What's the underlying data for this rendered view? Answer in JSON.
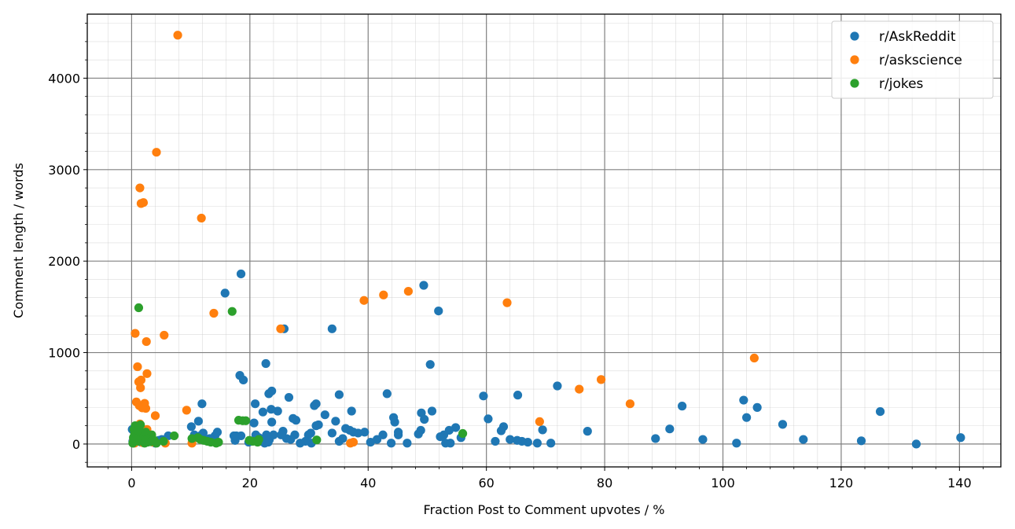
{
  "chart_data": {
    "type": "scatter",
    "title": "",
    "xlabel": "Fraction Post to Comment upvotes / %",
    "ylabel": "Comment length / words",
    "xlim": [
      -7.5,
      147
    ],
    "ylim": [
      -250,
      4700
    ],
    "xticks": [
      0,
      20,
      40,
      60,
      80,
      100,
      120,
      140
    ],
    "yticks": [
      0,
      1000,
      2000,
      3000,
      4000
    ],
    "grid": true,
    "legend_position": "top-right",
    "series": [
      {
        "name": "r/AskReddit",
        "color": "#1f77b4",
        "points": [
          [
            18.5,
            1860
          ],
          [
            15.8,
            1650
          ],
          [
            49.4,
            1735
          ],
          [
            51.9,
            1455
          ],
          [
            22.7,
            880
          ],
          [
            50.5,
            870
          ],
          [
            25.8,
            1260
          ],
          [
            33.9,
            1260
          ],
          [
            18.3,
            750
          ],
          [
            18.9,
            700
          ],
          [
            11.9,
            440
          ],
          [
            20.9,
            440
          ],
          [
            23.2,
            550
          ],
          [
            23.7,
            580
          ],
          [
            26.6,
            510
          ],
          [
            30.9,
            420
          ],
          [
            31.2,
            440
          ],
          [
            35.1,
            540
          ],
          [
            37.2,
            360
          ],
          [
            43.2,
            550
          ],
          [
            49.0,
            340
          ],
          [
            50.8,
            360
          ],
          [
            59.5,
            525
          ],
          [
            65.3,
            535
          ],
          [
            72.0,
            635
          ],
          [
            93.1,
            415
          ],
          [
            103.5,
            480
          ],
          [
            104.0,
            290
          ],
          [
            105.8,
            400
          ],
          [
            110.1,
            215
          ],
          [
            126.6,
            355
          ],
          [
            140.2,
            70
          ],
          [
            132.7,
            0
          ],
          [
            123.4,
            35
          ],
          [
            113.6,
            50
          ],
          [
            102.3,
            10
          ],
          [
            96.6,
            50
          ],
          [
            91.0,
            165
          ],
          [
            88.6,
            60
          ],
          [
            77.1,
            140
          ],
          [
            70.9,
            10
          ],
          [
            69.5,
            155
          ],
          [
            68.6,
            10
          ],
          [
            67.0,
            20
          ],
          [
            66.0,
            30
          ],
          [
            65.2,
            40
          ],
          [
            64.0,
            50
          ],
          [
            62.9,
            190
          ],
          [
            62.5,
            145
          ],
          [
            61.5,
            30
          ],
          [
            60.3,
            275
          ],
          [
            55.7,
            70
          ],
          [
            54.8,
            180
          ],
          [
            53.9,
            10
          ],
          [
            53.7,
            150
          ],
          [
            53.1,
            10
          ],
          [
            52.8,
            100
          ],
          [
            52.2,
            80
          ],
          [
            49.5,
            270
          ],
          [
            48.9,
            150
          ],
          [
            48.5,
            110
          ],
          [
            46.6,
            10
          ],
          [
            45.1,
            100
          ],
          [
            45.1,
            130
          ],
          [
            44.5,
            240
          ],
          [
            44.3,
            290
          ],
          [
            43.9,
            10
          ],
          [
            42.5,
            100
          ],
          [
            41.5,
            50
          ],
          [
            40.4,
            20
          ],
          [
            39.4,
            130
          ],
          [
            38.3,
            120
          ],
          [
            37.5,
            130
          ],
          [
            36.9,
            150
          ],
          [
            36.2,
            170
          ],
          [
            35.7,
            60
          ],
          [
            35.1,
            30
          ],
          [
            34.5,
            250
          ],
          [
            33.9,
            120
          ],
          [
            32.7,
            320
          ],
          [
            31.6,
            210
          ],
          [
            31.2,
            200
          ],
          [
            30.4,
            10
          ],
          [
            30.3,
            120
          ],
          [
            29.9,
            100
          ],
          [
            29.4,
            30
          ],
          [
            28.5,
            10
          ],
          [
            27.8,
            260
          ],
          [
            27.6,
            100
          ],
          [
            27.3,
            280
          ],
          [
            26.9,
            50
          ],
          [
            26.2,
            60
          ],
          [
            25.6,
            140
          ],
          [
            25.3,
            100
          ],
          [
            24.7,
            360
          ],
          [
            24.0,
            100
          ],
          [
            23.7,
            240
          ],
          [
            23.6,
            380
          ],
          [
            23.3,
            50
          ],
          [
            23.1,
            20
          ],
          [
            22.8,
            100
          ],
          [
            22.5,
            10
          ],
          [
            22.2,
            350
          ],
          [
            21.9,
            30
          ],
          [
            21.5,
            70
          ],
          [
            21.0,
            100
          ],
          [
            20.7,
            230
          ],
          [
            20.1,
            30
          ],
          [
            19.8,
            20
          ],
          [
            18.5,
            90
          ],
          [
            17.7,
            90
          ],
          [
            17.5,
            40
          ],
          [
            17.3,
            90
          ],
          [
            14.5,
            130
          ],
          [
            14.1,
            90
          ],
          [
            13.2,
            60
          ],
          [
            12.1,
            120
          ],
          [
            11.6,
            90
          ],
          [
            11.3,
            250
          ],
          [
            10.6,
            100
          ],
          [
            10.1,
            190
          ],
          [
            6.2,
            90
          ],
          [
            5.1,
            50
          ],
          [
            4.6,
            40
          ],
          [
            3.2,
            80
          ],
          [
            2.5,
            90
          ],
          [
            2.2,
            40
          ],
          [
            1.8,
            110
          ],
          [
            1.4,
            70
          ],
          [
            1.0,
            130
          ],
          [
            0.7,
            100
          ],
          [
            0.5,
            50
          ],
          [
            0.3,
            10
          ],
          [
            0.2,
            30
          ],
          [
            0.1,
            160
          ],
          [
            0.4,
            80
          ],
          [
            0.6,
            20
          ],
          [
            0.9,
            120
          ],
          [
            1.2,
            40
          ],
          [
            1.6,
            20
          ],
          [
            2.0,
            60
          ],
          [
            2.8,
            70
          ],
          [
            3.5,
            30
          ],
          [
            4.0,
            10
          ]
        ]
      },
      {
        "name": "r/askscience",
        "color": "#ff7f0e",
        "points": [
          [
            7.8,
            4470
          ],
          [
            4.2,
            3190
          ],
          [
            1.4,
            2800
          ],
          [
            1.6,
            2630
          ],
          [
            2.0,
            2640
          ],
          [
            11.8,
            2470
          ],
          [
            39.3,
            1570
          ],
          [
            42.6,
            1630
          ],
          [
            46.8,
            1670
          ],
          [
            63.5,
            1545
          ],
          [
            13.9,
            1430
          ],
          [
            25.2,
            1260
          ],
          [
            0.6,
            1210
          ],
          [
            5.5,
            1190
          ],
          [
            2.5,
            1120
          ],
          [
            105.3,
            940
          ],
          [
            1.0,
            845
          ],
          [
            2.6,
            770
          ],
          [
            1.6,
            700
          ],
          [
            1.2,
            680
          ],
          [
            1.5,
            615
          ],
          [
            79.4,
            705
          ],
          [
            75.7,
            600
          ],
          [
            84.3,
            440
          ],
          [
            0.8,
            460
          ],
          [
            2.2,
            445
          ],
          [
            1.3,
            420
          ],
          [
            2.4,
            390
          ],
          [
            1.8,
            395
          ],
          [
            9.3,
            370
          ],
          [
            4.0,
            310
          ],
          [
            69.0,
            245
          ],
          [
            1.4,
            220
          ],
          [
            2.6,
            160
          ],
          [
            2.0,
            140
          ],
          [
            1.1,
            120
          ],
          [
            0.9,
            80
          ],
          [
            1.7,
            60
          ],
          [
            2.9,
            40
          ],
          [
            3.6,
            20
          ],
          [
            5.7,
            10
          ],
          [
            10.2,
            10
          ],
          [
            37.0,
            10
          ],
          [
            37.5,
            20
          ],
          [
            0.5,
            10
          ],
          [
            0.3,
            30
          ],
          [
            1.9,
            15
          ],
          [
            3.1,
            90
          ]
        ]
      },
      {
        "name": "r/jokes",
        "color": "#2ca02c",
        "points": [
          [
            1.2,
            1490
          ],
          [
            17.0,
            1450
          ],
          [
            18.1,
            260
          ],
          [
            18.8,
            255
          ],
          [
            19.3,
            255
          ],
          [
            7.2,
            90
          ],
          [
            10.2,
            60
          ],
          [
            11.2,
            70
          ],
          [
            11.6,
            50
          ],
          [
            12.2,
            40
          ],
          [
            12.8,
            30
          ],
          [
            13.4,
            20
          ],
          [
            14.3,
            10
          ],
          [
            14.7,
            20
          ],
          [
            19.9,
            40
          ],
          [
            20.5,
            30
          ],
          [
            21.3,
            20
          ],
          [
            21.5,
            50
          ],
          [
            31.3,
            45
          ],
          [
            56.0,
            115
          ],
          [
            0.2,
            10
          ],
          [
            0.4,
            160
          ],
          [
            0.5,
            120
          ],
          [
            0.7,
            60
          ],
          [
            0.9,
            180
          ],
          [
            1.0,
            90
          ],
          [
            1.2,
            30
          ],
          [
            1.4,
            140
          ],
          [
            1.6,
            110
          ],
          [
            1.8,
            50
          ],
          [
            2.1,
            80
          ],
          [
            2.4,
            130
          ],
          [
            2.7,
            20
          ],
          [
            3.0,
            70
          ],
          [
            3.4,
            100
          ],
          [
            3.8,
            40
          ],
          [
            4.2,
            10
          ],
          [
            5.4,
            30
          ],
          [
            0.6,
            200
          ],
          [
            1.5,
            210
          ],
          [
            2.2,
            10
          ],
          [
            0.3,
            70
          ],
          [
            1.1,
            150
          ],
          [
            2.6,
            50
          ],
          [
            3.2,
            25
          ]
        ]
      }
    ]
  }
}
